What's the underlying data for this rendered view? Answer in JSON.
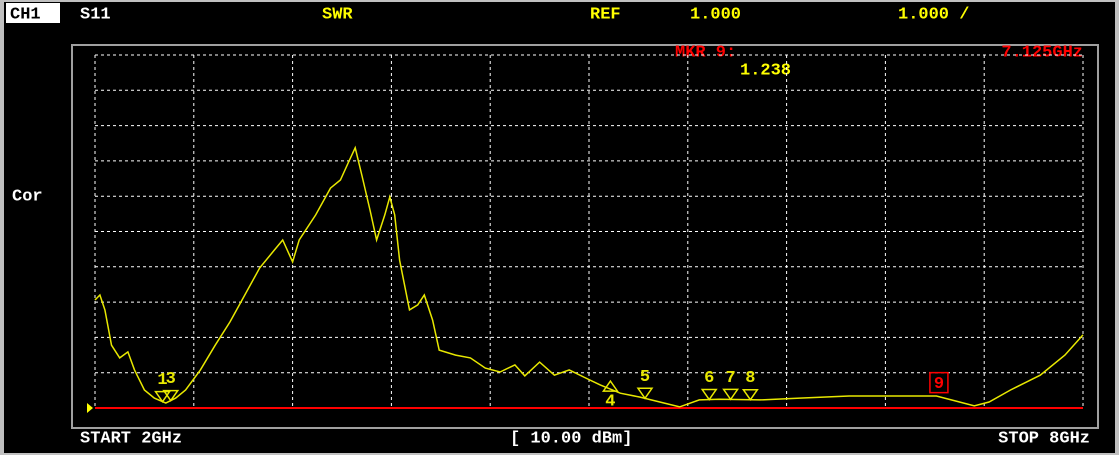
{
  "header": {
    "channel": "CH1",
    "parameter": "S11",
    "format": "SWR",
    "ref_label": "REF",
    "ref_value": "1.000",
    "scale": "1.000 /",
    "marker_name": "MKR 9:",
    "marker_freq": "7.125GHz",
    "marker_value": "1.238"
  },
  "side_label": "Cor",
  "footer": {
    "start": "START 2GHz",
    "power": "[ 10.00 dBm]",
    "stop": "STOP 8GHz"
  },
  "chart_data": {
    "type": "line",
    "x": [
      2.0,
      2.03,
      2.06,
      2.1,
      2.15,
      2.2,
      2.24,
      2.3,
      2.36,
      2.43,
      2.49,
      2.55,
      2.64,
      2.73,
      2.82,
      2.91,
      3.0,
      3.09,
      3.14,
      3.2,
      3.24,
      3.34,
      3.43,
      3.49,
      3.54,
      3.58,
      3.62,
      3.67,
      3.71,
      3.76,
      3.79,
      3.82,
      3.85,
      3.91,
      3.96,
      4.0,
      4.05,
      4.09,
      4.19,
      4.28,
      4.37,
      4.46,
      4.55,
      4.61,
      4.7,
      4.79,
      4.88,
      4.98,
      5.07,
      5.19,
      5.31,
      5.43,
      5.55,
      5.67,
      5.79,
      6.04,
      6.28,
      6.58,
      6.89,
      7.11,
      7.25,
      7.34,
      7.43,
      7.56,
      7.74,
      7.89,
      8.0
    ],
    "series": [
      {
        "name": "S11",
        "color": "#e8e800",
        "values": [
          4.06,
          4.2,
          3.78,
          2.78,
          2.42,
          2.59,
          2.08,
          1.51,
          1.28,
          1.14,
          1.28,
          1.51,
          2.08,
          2.78,
          3.44,
          4.2,
          4.97,
          5.48,
          5.76,
          5.14,
          5.76,
          6.47,
          7.23,
          7.46,
          7.97,
          8.37,
          7.6,
          6.61,
          5.76,
          6.47,
          6.98,
          6.47,
          5.19,
          3.78,
          3.92,
          4.2,
          3.49,
          2.64,
          2.5,
          2.42,
          2.13,
          2.02,
          2.22,
          1.91,
          2.3,
          1.93,
          2.08,
          1.85,
          1.65,
          1.42,
          1.31,
          1.17,
          1.03,
          1.23,
          1.25,
          1.23,
          1.28,
          1.34,
          1.34,
          1.34,
          1.17,
          1.06,
          1.17,
          1.51,
          1.93,
          2.5,
          3.07
        ]
      }
    ],
    "xlim": [
      2,
      8
    ],
    "ylim": [
      1,
      11
    ],
    "xticks": [
      2,
      2.6,
      3.2,
      3.8,
      4.4,
      5,
      5.6,
      6.2,
      6.8,
      7.4,
      8
    ],
    "yticks": [
      1,
      2,
      3,
      4,
      5,
      6,
      7,
      8,
      9,
      10,
      11
    ],
    "grid": true,
    "reference_color": "#ff0000",
    "markers": [
      {
        "label": "1",
        "x": 2.41,
        "pointer": "down",
        "color": "#e8e800"
      },
      {
        "label": "3",
        "x": 2.46,
        "pointer": "down",
        "color": "#e8e800"
      },
      {
        "label": "4",
        "x": 5.13,
        "pointer": "up",
        "color": "#e8e800"
      },
      {
        "label": "5",
        "x": 5.34,
        "pointer": "down",
        "color": "#e8e800"
      },
      {
        "label": "6",
        "x": 5.73,
        "pointer": "down",
        "color": "#e8e800"
      },
      {
        "label": "7",
        "x": 5.86,
        "pointer": "down",
        "color": "#e8e800"
      },
      {
        "label": "8",
        "x": 5.98,
        "pointer": "down",
        "color": "#e8e800"
      },
      {
        "label": "9",
        "x": 7.125,
        "pointer": "box",
        "color": "#ff0000"
      }
    ]
  }
}
